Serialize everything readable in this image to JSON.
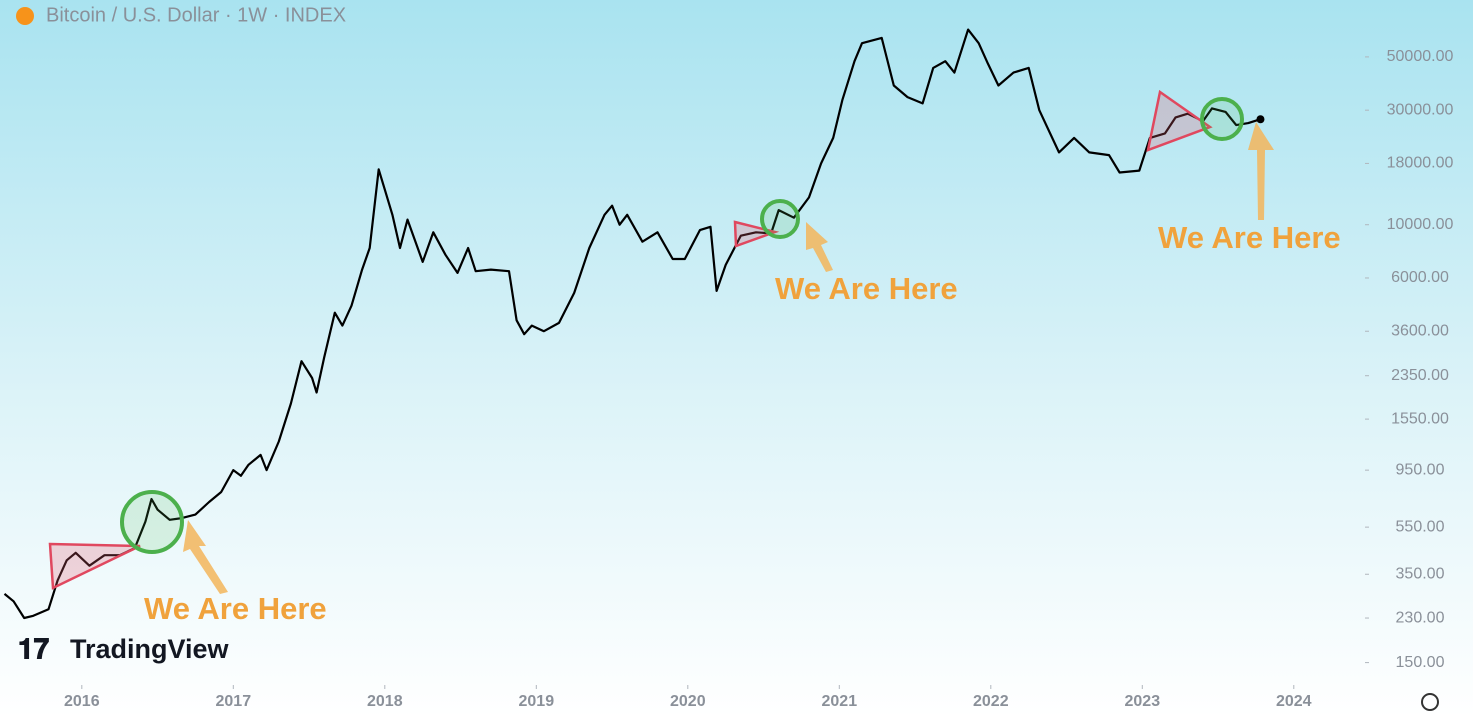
{
  "chart_data": {
    "type": "line",
    "title": "Bitcoin / U.S. Dollar · 1W · INDEX",
    "brand": "TradingView",
    "annotations": [
      "We Are Here",
      "We Are Here",
      "We Are Here"
    ],
    "log_scale": true,
    "xlim": [
      2015.46,
      2024.47
    ],
    "xticks": [
      2016,
      2017,
      2018,
      2019,
      2020,
      2021,
      2022,
      2023,
      2024
    ],
    "ylim": [
      121,
      86300
    ],
    "yticks": [
      {
        "value": 150,
        "label": "150.00"
      },
      {
        "value": 230,
        "label": "230.00"
      },
      {
        "value": 350,
        "label": "350.00"
      },
      {
        "value": 550,
        "label": "550.00"
      },
      {
        "value": 950,
        "label": "950.00"
      },
      {
        "value": 1550,
        "label": "1550.00"
      },
      {
        "value": 2350,
        "label": "2350.00"
      },
      {
        "value": 3600,
        "label": "3600.00"
      },
      {
        "value": 6000,
        "label": "6000.00"
      },
      {
        "value": 10000,
        "label": "10000.00"
      },
      {
        "value": 18000,
        "label": "18000.00"
      },
      {
        "value": 30000,
        "label": "30000.00"
      },
      {
        "value": 50000,
        "label": "50000.00"
      }
    ],
    "series": [
      {
        "color": "#000000",
        "x": [
          2015.49,
          2015.55,
          2015.62,
          2015.68,
          2015.78,
          2015.84,
          2015.9,
          2015.96,
          2016.05,
          2016.15,
          2016.25,
          2016.35,
          2016.42,
          2016.46,
          2016.5,
          2016.58,
          2016.66,
          2016.75,
          2016.84,
          2016.92,
          2017.0,
          2017.05,
          2017.1,
          2017.18,
          2017.22,
          2017.3,
          2017.38,
          2017.45,
          2017.52,
          2017.55,
          2017.6,
          2017.67,
          2017.72,
          2017.78,
          2017.85,
          2017.9,
          2017.96,
          2018.0,
          2018.05,
          2018.1,
          2018.15,
          2018.25,
          2018.32,
          2018.4,
          2018.48,
          2018.55,
          2018.6,
          2018.7,
          2018.82,
          2018.87,
          2018.92,
          2018.97,
          2019.05,
          2019.15,
          2019.25,
          2019.35,
          2019.45,
          2019.5,
          2019.55,
          2019.6,
          2019.7,
          2019.8,
          2019.9,
          2019.98,
          2020.08,
          2020.15,
          2020.19,
          2020.25,
          2020.35,
          2020.45,
          2020.55,
          2020.6,
          2020.7,
          2020.8,
          2020.88,
          2020.96,
          2021.02,
          2021.1,
          2021.15,
          2021.28,
          2021.36,
          2021.45,
          2021.55,
          2021.62,
          2021.7,
          2021.76,
          2021.85,
          2021.92,
          2021.98,
          2022.05,
          2022.15,
          2022.25,
          2022.32,
          2022.45,
          2022.55,
          2022.65,
          2022.78,
          2022.85,
          2022.98,
          2023.05,
          2023.15,
          2023.22,
          2023.3,
          2023.4,
          2023.46,
          2023.55,
          2023.62,
          2023.7,
          2023.78
        ],
        "values": [
          290,
          270,
          230,
          235,
          250,
          330,
          400,
          430,
          380,
          420,
          420,
          450,
          580,
          720,
          650,
          590,
          600,
          620,
          700,
          770,
          950,
          900,
          1000,
          1100,
          950,
          1250,
          1800,
          2700,
          2300,
          2000,
          2800,
          4300,
          3800,
          4600,
          6500,
          8000,
          17000,
          14000,
          11000,
          8000,
          10500,
          7000,
          9300,
          7500,
          6300,
          8000,
          6400,
          6500,
          6400,
          4000,
          3500,
          3800,
          3600,
          3900,
          5200,
          8000,
          11000,
          12000,
          10000,
          11000,
          8500,
          9300,
          7200,
          7200,
          9500,
          9800,
          5300,
          6800,
          9000,
          9300,
          9200,
          11500,
          10700,
          13000,
          18000,
          23000,
          33000,
          48000,
          57000,
          60000,
          38000,
          34000,
          32000,
          45000,
          48000,
          43000,
          65000,
          57000,
          47000,
          38000,
          43000,
          45000,
          30000,
          20000,
          23000,
          20000,
          19500,
          16500,
          16800,
          23000,
          24000,
          28000,
          29000,
          27000,
          30500,
          29500,
          26000,
          26500,
          27500
        ]
      }
    ]
  }
}
